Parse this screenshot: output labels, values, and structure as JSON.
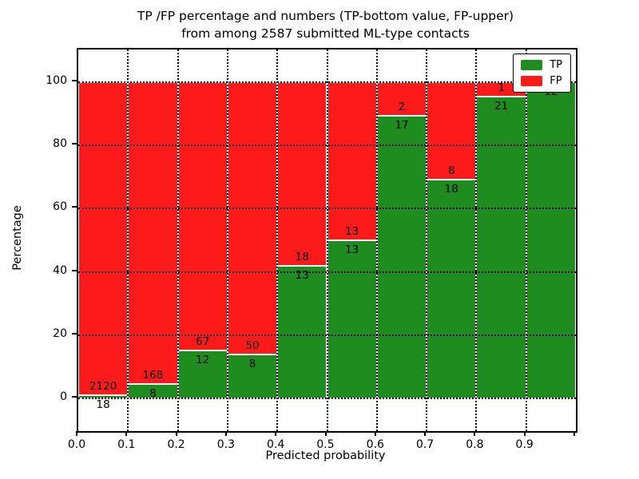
{
  "figure": {
    "title_line1": "TP /FP percentage and numbers (TP-bottom value, FP-upper)",
    "title_line2": "from among 2587 submitted ML-type contacts"
  },
  "chart_data": {
    "type": "bar",
    "variant": "stacked-percentage",
    "title": "TP /FP percentage and numbers (TP-bottom value, FP-upper) from among 2587 submitted ML-type contacts",
    "xlabel": "Predicted probability",
    "ylabel": "Percentage",
    "xlim": [
      0.0,
      1.0
    ],
    "ylim": [
      -10.5,
      110.5
    ],
    "grid": "dotted both axes, drawn over bars",
    "legend_position": "upper right",
    "total_contacts": 2587,
    "x_tick_labels": [
      "0.0",
      "0.1",
      "0.2",
      "0.3",
      "0.4",
      "0.5",
      "0.6",
      "0.7",
      "0.8",
      "0.9"
    ],
    "y_tick_values": [
      0,
      20,
      40,
      60,
      80,
      100
    ],
    "series": [
      {
        "name": "TP",
        "color": "#1e8c1e"
      },
      {
        "name": "FP",
        "color": "#fc1a1a"
      }
    ],
    "bins": [
      {
        "x_start": 0.0,
        "x_end": 0.1,
        "tp": 18,
        "fp": 2120,
        "tp_pct": 0.84,
        "fp_pct": 99.16
      },
      {
        "x_start": 0.1,
        "x_end": 0.2,
        "tp": 8,
        "fp": 168,
        "tp_pct": 4.55,
        "fp_pct": 95.45
      },
      {
        "x_start": 0.2,
        "x_end": 0.3,
        "tp": 12,
        "fp": 67,
        "tp_pct": 15.19,
        "fp_pct": 84.81
      },
      {
        "x_start": 0.3,
        "x_end": 0.4,
        "tp": 8,
        "fp": 50,
        "tp_pct": 13.79,
        "fp_pct": 86.21
      },
      {
        "x_start": 0.4,
        "x_end": 0.5,
        "tp": 13,
        "fp": 18,
        "tp_pct": 41.94,
        "fp_pct": 58.06
      },
      {
        "x_start": 0.5,
        "x_end": 0.6,
        "tp": 13,
        "fp": 13,
        "tp_pct": 50.0,
        "fp_pct": 50.0
      },
      {
        "x_start": 0.6,
        "x_end": 0.7,
        "tp": 17,
        "fp": 2,
        "tp_pct": 89.47,
        "fp_pct": 10.53
      },
      {
        "x_start": 0.7,
        "x_end": 0.8,
        "tp": 18,
        "fp": 8,
        "tp_pct": 69.23,
        "fp_pct": 30.77
      },
      {
        "x_start": 0.8,
        "x_end": 0.9,
        "tp": 21,
        "fp": 1,
        "tp_pct": 95.45,
        "fp_pct": 4.55
      },
      {
        "x_start": 0.9,
        "x_end": 1.0,
        "tp": 12,
        "fp": 0,
        "tp_pct": 100.0,
        "fp_pct": 0.0
      }
    ]
  }
}
